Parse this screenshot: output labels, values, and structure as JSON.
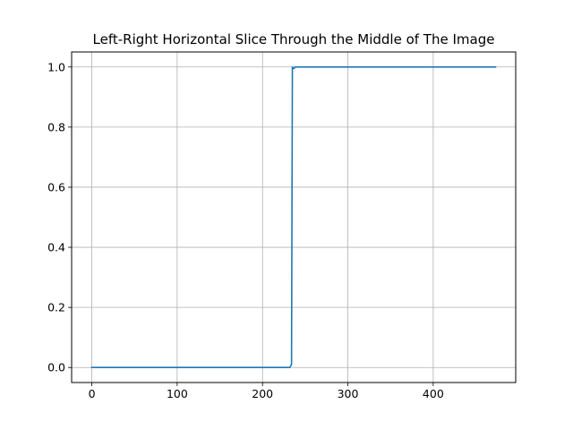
{
  "chart_data": {
    "type": "line",
    "title": "Left-Right Horizontal Slice Through the Middle of The Image",
    "xlabel": "",
    "ylabel": "",
    "xlim": [
      -23.65,
      496.65
    ],
    "ylim": [
      -0.05,
      1.05
    ],
    "grid": true,
    "legend": "none",
    "xticks": [
      0,
      100,
      200,
      300,
      400
    ],
    "xtick_labels": [
      "0",
      "100",
      "200",
      "300",
      "400"
    ],
    "yticks": [
      0.0,
      0.2,
      0.4,
      0.6,
      0.8,
      1.0
    ],
    "ytick_labels": [
      "0.0",
      "0.2",
      "0.4",
      "0.6",
      "0.8",
      "1.0"
    ],
    "series": [
      {
        "color": "#1f77b4",
        "x": [
          0,
          232,
          234,
          235,
          236,
          237,
          238,
          239,
          240,
          473
        ],
        "y": [
          0.0,
          0.0,
          0.01,
          1.0,
          0.995,
          0.995,
          1.0,
          1.0,
          1.0,
          1.0
        ]
      }
    ]
  }
}
